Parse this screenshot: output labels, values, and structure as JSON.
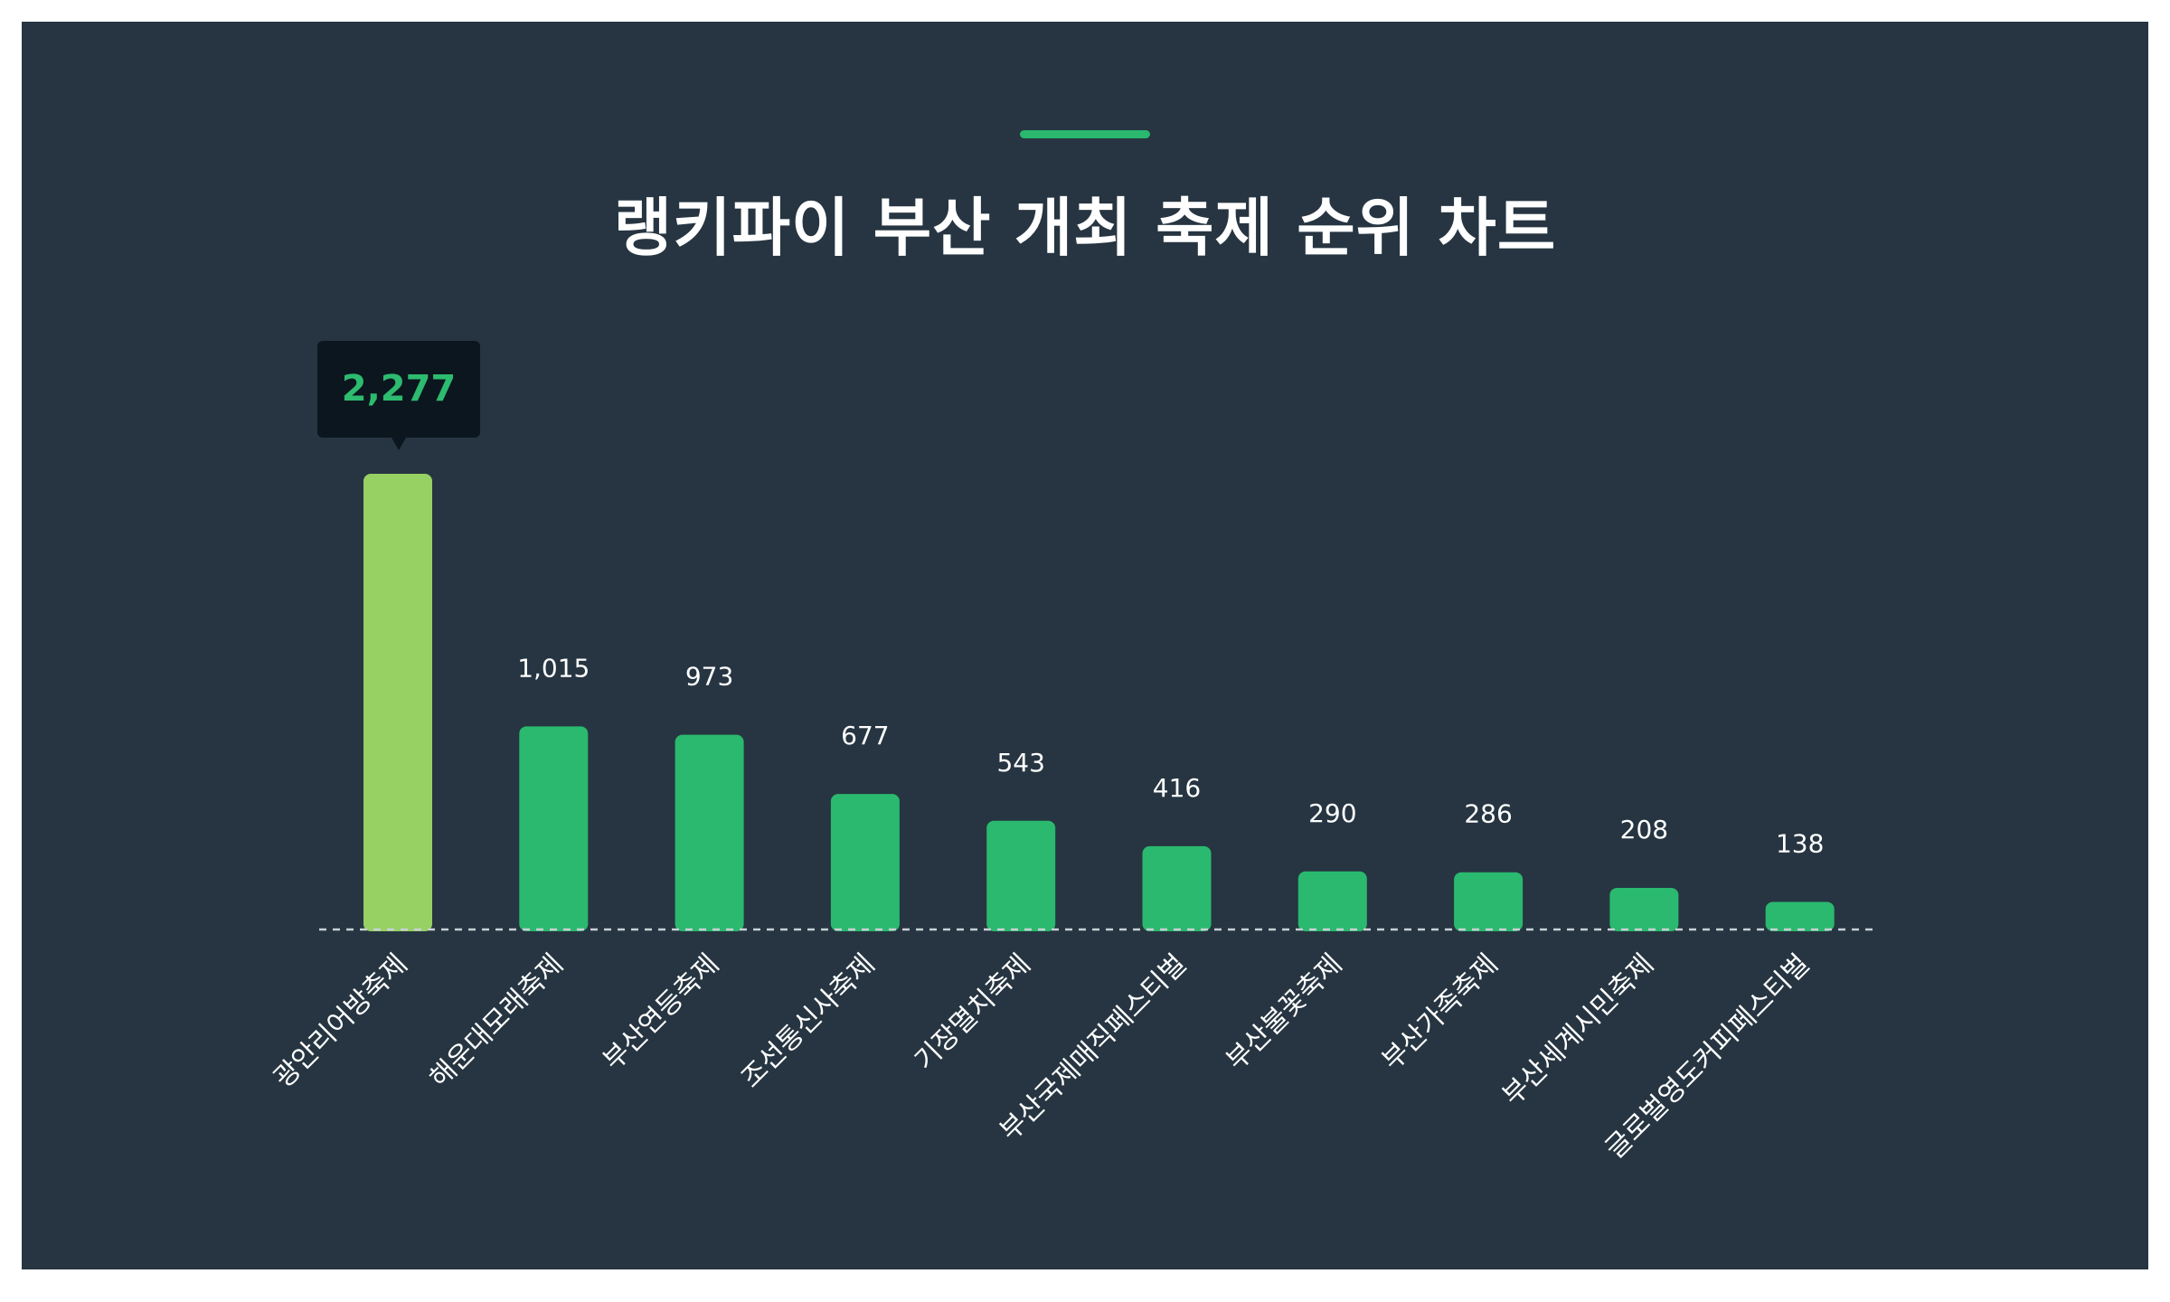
{
  "chart_data": {
    "type": "bar",
    "title": "랭키파이 부산 개최 축제 순위 차트",
    "categories": [
      "광안리어방축제",
      "해운대모래축제",
      "부산연등축제",
      "조선통신사축제",
      "기장멸치축제",
      "부산국제매직페스티벌",
      "부산불꽃축제",
      "부산가족축제",
      "부산세계시민축제",
      "글로벌영도커피페스티벌"
    ],
    "values": [
      2277,
      1015,
      973,
      677,
      543,
      416,
      290,
      286,
      208,
      138
    ],
    "value_labels": [
      "2,277",
      "1,015",
      "973",
      "677",
      "543",
      "416",
      "290",
      "286",
      "208",
      "138"
    ],
    "highlight_index": 0,
    "xlabel": "",
    "ylabel": "",
    "ylim": [
      0,
      2277
    ],
    "grid": false,
    "legend": "none"
  },
  "colors": {
    "background": "#263541",
    "bar": "#2ab96f",
    "highlight_bar": "#97d063",
    "tooltip_bg": "#0b161f",
    "tooltip_text": "#2dbb6f",
    "accent": "#29b86e",
    "text": "#ffffff"
  }
}
